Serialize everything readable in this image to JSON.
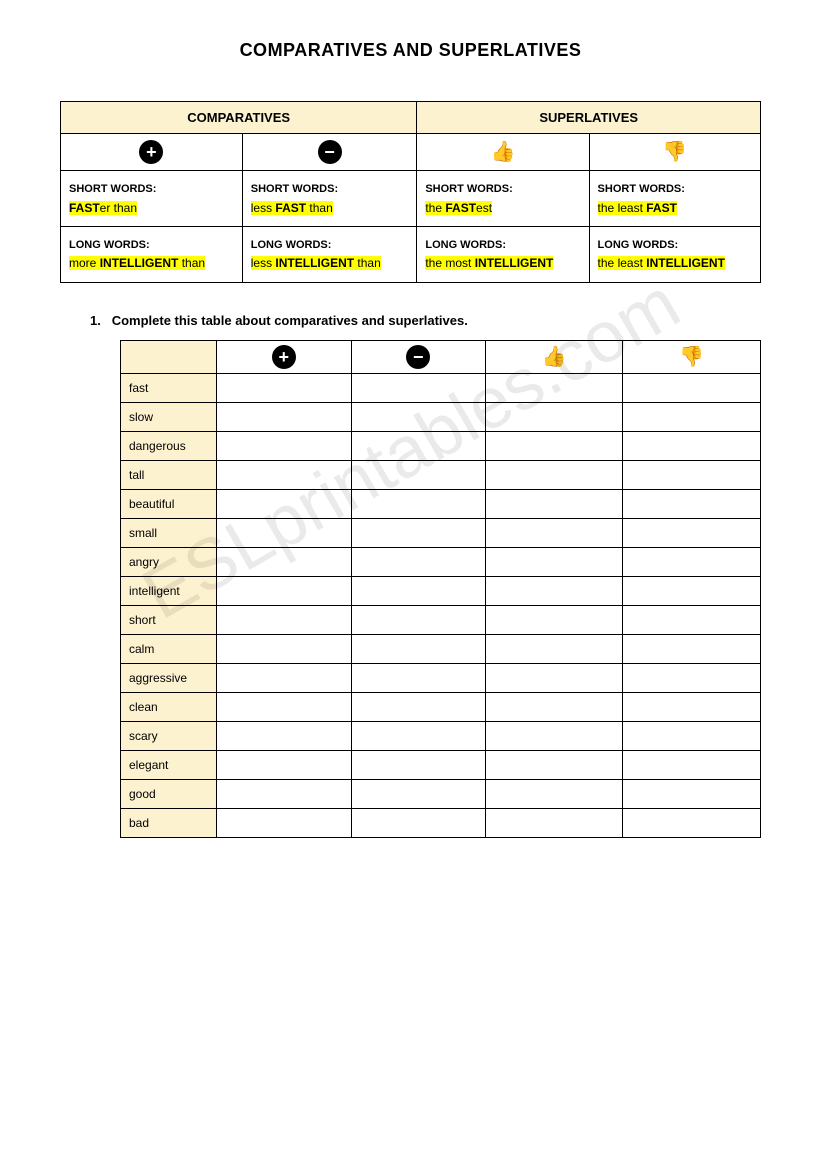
{
  "title": "COMPARATIVES AND SUPERLATIVES",
  "watermark": "ESLprintables.com",
  "colors": {
    "header_bg": "#fdf2d0",
    "highlight": "#ffff00",
    "border": "#000000",
    "icon_bg": "#000000",
    "icon_fg": "#ffffff",
    "page_bg": "#ffffff",
    "text": "#000000"
  },
  "ref_table": {
    "headers": [
      "COMPARATIVES",
      "SUPERLATIVES"
    ],
    "icons": [
      "plus",
      "minus",
      "thumbs-up",
      "thumbs-down"
    ],
    "rows": [
      {
        "label": "SHORT WORDS:",
        "cells": [
          {
            "pre": "",
            "bold": "FAST",
            "mid": "er than",
            "post": ""
          },
          {
            "pre": "less ",
            "bold": "FAST",
            "mid": "",
            "post": " than"
          },
          {
            "pre": "the ",
            "bold": "FAST",
            "mid": "est",
            "post": ""
          },
          {
            "pre": "the least ",
            "bold": "FAST",
            "mid": "",
            "post": ""
          }
        ]
      },
      {
        "label": "LONG WORDS:",
        "cells": [
          {
            "pre": "more ",
            "bold": "INTELLIGENT",
            "mid": "",
            "post": " than"
          },
          {
            "pre": "less ",
            "bold": "INTELLIGENT",
            "mid": "",
            "post": " than"
          },
          {
            "pre": "the most ",
            "bold": "INTELLIGENT",
            "mid": "",
            "post": ""
          },
          {
            "pre": "the least ",
            "bold": "INTELLIGENT",
            "mid": "",
            "post": ""
          }
        ]
      }
    ]
  },
  "instruction_number": "1.",
  "instruction_text": "Complete this table about comparatives and superlatives.",
  "exercise": {
    "icons": [
      "plus",
      "minus",
      "thumbs-up",
      "thumbs-down"
    ],
    "words": [
      "fast",
      "slow",
      "dangerous",
      "tall",
      "beautiful",
      "small",
      "angry",
      "intelligent",
      "short",
      "calm",
      "aggressive",
      "clean",
      "scary",
      "elegant",
      "good",
      "bad"
    ]
  }
}
